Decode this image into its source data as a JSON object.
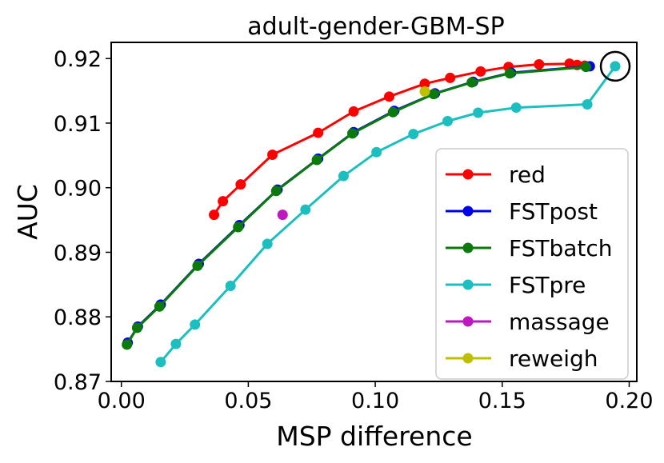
{
  "chart_data": {
    "type": "line",
    "title": "adult-gender-GBM-SP",
    "xlabel": "MSP difference",
    "ylabel": "AUC",
    "xlim": [
      -0.004,
      0.203
    ],
    "ylim": [
      0.87,
      0.9225
    ],
    "xticks": [
      0.0,
      0.05,
      0.1,
      0.15,
      0.2
    ],
    "xtick_labels": [
      "0.00",
      "0.05",
      "0.10",
      "0.15",
      "0.20"
    ],
    "yticks": [
      0.87,
      0.88,
      0.89,
      0.9,
      0.91,
      0.92
    ],
    "ytick_labels": [
      "0.87",
      "0.88",
      "0.89",
      "0.90",
      "0.91",
      "0.92"
    ],
    "legend_position": "lower-right",
    "series": [
      {
        "name": "FSTpre",
        "color": "#1bbfbf",
        "line": true,
        "x": [
          0.0155,
          0.0215,
          0.029,
          0.043,
          0.0575,
          0.0725,
          0.0875,
          0.1005,
          0.115,
          0.1285,
          0.1405,
          0.1555,
          0.1835,
          0.1945
        ],
        "y": [
          0.873,
          0.8758,
          0.8788,
          0.8848,
          0.8913,
          0.8966,
          0.9018,
          0.9055,
          0.9083,
          0.9103,
          0.9116,
          0.9124,
          0.9129,
          0.9188
        ]
      },
      {
        "name": "red",
        "color": "#ff0000",
        "line": true,
        "x": [
          0.0365,
          0.04,
          0.047,
          0.0595,
          0.0775,
          0.0915,
          0.1055,
          0.1195,
          0.1295,
          0.1415,
          0.1525,
          0.1645,
          0.1765,
          0.1795,
          0.1825
        ],
        "y": [
          0.8958,
          0.8979,
          0.9005,
          0.9051,
          0.9085,
          0.9118,
          0.9141,
          0.9161,
          0.917,
          0.918,
          0.9187,
          0.9191,
          0.9192,
          0.919,
          0.9189
        ]
      },
      {
        "name": "FSTpost",
        "color": "#0000ee",
        "line": true,
        "x": [
          0.0025,
          0.0065,
          0.0155,
          0.0305,
          0.0465,
          0.0615,
          0.0775,
          0.0915,
          0.1075,
          0.1235,
          0.1385,
          0.1535,
          0.1845
        ],
        "y": [
          0.876,
          0.8785,
          0.8819,
          0.8882,
          0.8942,
          0.8997,
          0.9045,
          0.9086,
          0.9119,
          0.9146,
          0.9164,
          0.9178,
          0.9188
        ]
      },
      {
        "name": "FSTbatch",
        "color": "#0a7a0a",
        "line": true,
        "x": [
          0.0022,
          0.0062,
          0.015,
          0.03,
          0.046,
          0.061,
          0.077,
          0.091,
          0.107,
          0.123,
          0.138,
          0.153,
          0.183
        ],
        "y": [
          0.8757,
          0.8783,
          0.8816,
          0.8879,
          0.8939,
          0.8995,
          0.9043,
          0.9084,
          0.9117,
          0.9145,
          0.9163,
          0.9177,
          0.9187
        ]
      },
      {
        "name": "massage",
        "color": "#c018c0",
        "line": false,
        "x": [
          0.0635
        ],
        "y": [
          0.8958
        ]
      },
      {
        "name": "reweigh",
        "color": "#bfbf00",
        "line": false,
        "x": [
          0.1195
        ],
        "y": [
          0.9149
        ]
      }
    ],
    "legend_order": [
      "red",
      "FSTpost",
      "FSTbatch",
      "FSTpre",
      "massage",
      "reweigh"
    ],
    "annotations": [
      {
        "type": "circle",
        "x": 0.1945,
        "y": 0.9188,
        "description": "highlighted point"
      }
    ]
  }
}
